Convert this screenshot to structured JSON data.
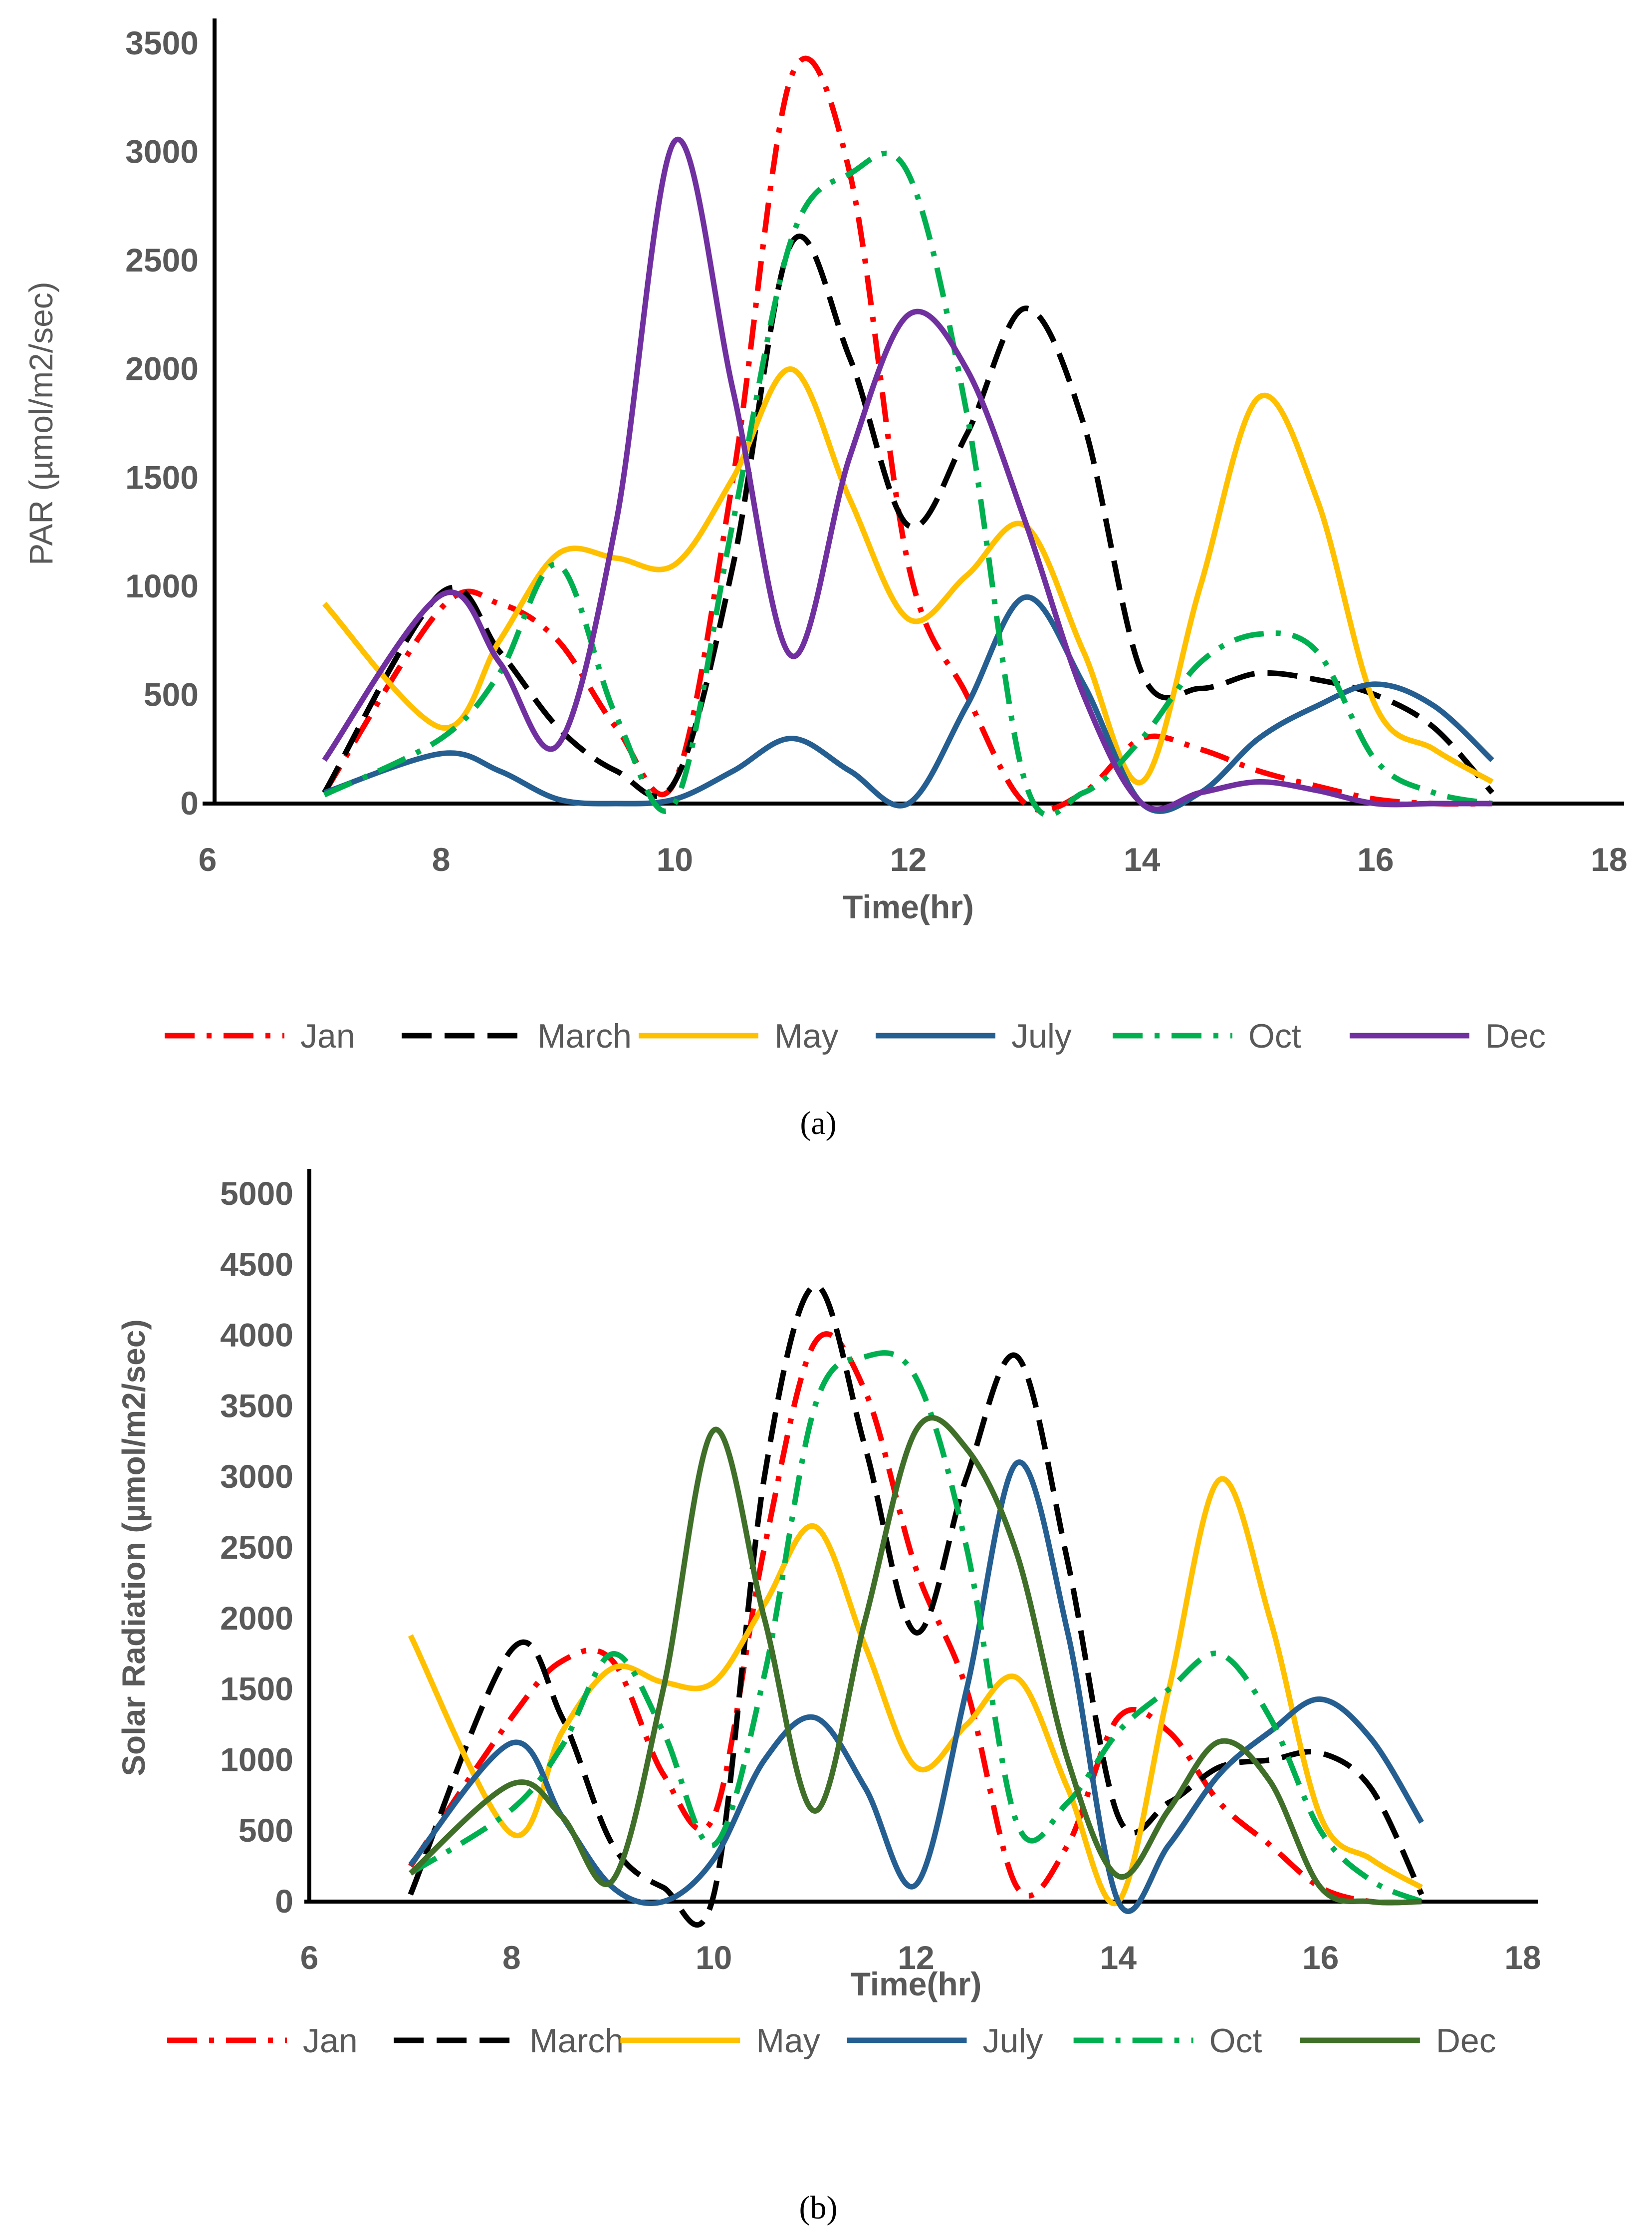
{
  "chart_data": [
    {
      "type": "line",
      "panel": "a",
      "caption": "(a)",
      "title": "",
      "xlabel": "Time(hr)",
      "ylabel": "PAR (µmol/m2/sec)",
      "xlim": [
        6,
        18
      ],
      "ylim": [
        0,
        3500
      ],
      "xticks": [
        6,
        8,
        10,
        12,
        14,
        16,
        18
      ],
      "yticks": [
        0,
        500,
        1000,
        1500,
        2000,
        2500,
        3000,
        3500
      ],
      "grid": false,
      "legend_position": "bottom",
      "series": [
        {
          "name": "Jan",
          "color": "#FF0000",
          "style": "dashdot",
          "x": [
            7,
            8,
            8.5,
            9,
            9.5,
            10,
            10.5,
            11,
            11.5,
            12,
            12.5,
            13,
            13.5,
            14,
            14.5,
            15,
            15.5,
            16,
            16.5,
            17
          ],
          "y": [
            50,
            900,
            920,
            750,
            350,
            100,
            1500,
            3350,
            2900,
            1100,
            500,
            0,
            50,
            300,
            250,
            150,
            80,
            20,
            0,
            0
          ]
        },
        {
          "name": "March",
          "color": "#000000",
          "style": "dash",
          "x": [
            7,
            8,
            8.5,
            9,
            9.5,
            10,
            10.5,
            11,
            11.5,
            12,
            12.5,
            13,
            13.5,
            14,
            14.5,
            15,
            15.5,
            16,
            16.5,
            17
          ],
          "y": [
            50,
            970,
            700,
            350,
            150,
            100,
            1100,
            2580,
            2050,
            1280,
            1700,
            2280,
            1750,
            600,
            530,
            600,
            570,
            500,
            350,
            50
          ]
        },
        {
          "name": "May",
          "color": "#FFC000",
          "style": "solid",
          "x": [
            7,
            8,
            8.5,
            9,
            9.5,
            10,
            10.5,
            11,
            11.5,
            12,
            12.5,
            13,
            13.5,
            14,
            14.5,
            15,
            15.5,
            16,
            16.5,
            17
          ],
          "y": [
            920,
            350,
            750,
            1150,
            1130,
            1100,
            1500,
            2000,
            1400,
            850,
            1050,
            1280,
            700,
            100,
            1000,
            1870,
            1400,
            450,
            250,
            100
          ]
        },
        {
          "name": "July",
          "color": "#255E91",
          "style": "solid",
          "x": [
            7,
            8,
            8.5,
            9,
            9.5,
            10,
            10.5,
            11,
            11.5,
            12,
            12.5,
            13,
            13.5,
            14,
            14.5,
            15,
            15.5,
            16,
            16.5,
            17
          ],
          "y": [
            50,
            230,
            150,
            20,
            0,
            20,
            150,
            300,
            150,
            0,
            450,
            950,
            550,
            0,
            50,
            300,
            450,
            550,
            450,
            200
          ]
        },
        {
          "name": "Oct",
          "color": "#00B050",
          "style": "dashdot",
          "x": [
            7,
            8,
            8.5,
            9,
            9.5,
            10,
            10.5,
            11,
            11.5,
            12,
            12.5,
            13,
            13.5,
            14,
            14.5,
            15,
            15.5,
            16,
            16.5,
            17
          ],
          "y": [
            40,
            300,
            600,
            1100,
            400,
            0,
            1300,
            2600,
            2900,
            2900,
            1800,
            100,
            50,
            300,
            650,
            780,
            700,
            200,
            50,
            0
          ]
        },
        {
          "name": "Dec",
          "color": "#7030A0",
          "style": "solid",
          "x": [
            7,
            8,
            8.5,
            9,
            9.5,
            10,
            10.5,
            11,
            11.5,
            12,
            12.5,
            13,
            13.5,
            14,
            14.5,
            15,
            15.5,
            16,
            16.5,
            17
          ],
          "y": [
            200,
            960,
            650,
            270,
            1300,
            3050,
            1900,
            680,
            1600,
            2250,
            2000,
            1300,
            500,
            0,
            50,
            100,
            60,
            0,
            0,
            0
          ]
        }
      ]
    },
    {
      "type": "line",
      "panel": "b",
      "caption": "(b)",
      "title": "",
      "xlabel": "Time(hr)",
      "ylabel": "Solar Radiation (µmol/m2/sec)",
      "xlim": [
        6,
        18
      ],
      "ylim": [
        0,
        5000
      ],
      "xticks": [
        6,
        8,
        10,
        12,
        14,
        16,
        18
      ],
      "yticks": [
        0,
        500,
        1000,
        1500,
        2000,
        2500,
        3000,
        3500,
        4000,
        4500,
        5000
      ],
      "grid": false,
      "legend_position": "bottom",
      "series": [
        {
          "name": "Jan",
          "color": "#FF0000",
          "style": "dashdot",
          "x": [
            7,
            8,
            8.5,
            9,
            9.5,
            10,
            10.5,
            11,
            11.5,
            12,
            12.5,
            13,
            13.5,
            14,
            14.5,
            15,
            15.5,
            16,
            16.5,
            17
          ],
          "y": [
            250,
            1300,
            1700,
            1700,
            900,
            600,
            2500,
            3950,
            3600,
            2350,
            1500,
            100,
            400,
            1300,
            1200,
            700,
            400,
            100,
            0,
            0
          ]
        },
        {
          "name": "March",
          "color": "#000000",
          "style": "dash",
          "x": [
            7,
            8,
            8.5,
            9,
            9.5,
            10,
            10.5,
            11,
            11.5,
            12,
            12.5,
            13,
            13.5,
            14,
            14.5,
            15,
            15.5,
            16,
            16.5,
            17
          ],
          "y": [
            50,
            1780,
            1300,
            400,
            100,
            50,
            3000,
            4350,
            3200,
            1900,
            3000,
            3850,
            2400,
            600,
            700,
            950,
            1000,
            1050,
            800,
            50
          ]
        },
        {
          "name": "May",
          "color": "#FFC000",
          "style": "solid",
          "x": [
            7,
            8,
            8.5,
            9,
            9.5,
            10,
            10.5,
            11,
            11.5,
            12,
            12.5,
            13,
            13.5,
            14,
            14.5,
            15,
            15.5,
            16,
            16.5,
            17
          ],
          "y": [
            1880,
            480,
            1200,
            1650,
            1550,
            1550,
            2100,
            2650,
            1800,
            950,
            1250,
            1580,
            800,
            0,
            1500,
            2980,
            2000,
            600,
            300,
            100
          ]
        },
        {
          "name": "July",
          "color": "#255E91",
          "style": "solid",
          "x": [
            7,
            8,
            8.5,
            9,
            9.5,
            10,
            10.5,
            11,
            11.5,
            12,
            12.5,
            13,
            13.5,
            14,
            14.5,
            15,
            15.5,
            16,
            16.5,
            17
          ],
          "y": [
            260,
            1120,
            600,
            100,
            0,
            300,
            1000,
            1300,
            800,
            120,
            1500,
            3100,
            1900,
            0,
            400,
            900,
            1200,
            1430,
            1150,
            560
          ]
        },
        {
          "name": "Oct",
          "color": "#00B050",
          "style": "dashdot",
          "x": [
            7,
            8,
            8.5,
            9,
            9.5,
            10,
            10.5,
            11,
            11.5,
            12,
            12.5,
            13,
            13.5,
            14,
            14.5,
            15,
            15.5,
            16,
            16.5,
            17
          ],
          "y": [
            200,
            650,
            1100,
            1750,
            1200,
            400,
            1600,
            3500,
            3850,
            3700,
            2500,
            550,
            700,
            1200,
            1500,
            1750,
            1300,
            500,
            150,
            0
          ]
        },
        {
          "name": "Dec",
          "color": "#3F6F28",
          "style": "solid",
          "x": [
            7,
            8,
            8.5,
            9,
            9.5,
            10,
            10.5,
            11,
            11.5,
            12,
            12.5,
            13,
            13.5,
            14,
            14.5,
            15,
            15.5,
            16,
            16.5,
            17
          ],
          "y": [
            200,
            830,
            600,
            150,
            1500,
            3330,
            2000,
            640,
            2000,
            3330,
            3200,
            2450,
            1000,
            180,
            650,
            1130,
            850,
            100,
            0,
            0
          ]
        }
      ]
    }
  ]
}
